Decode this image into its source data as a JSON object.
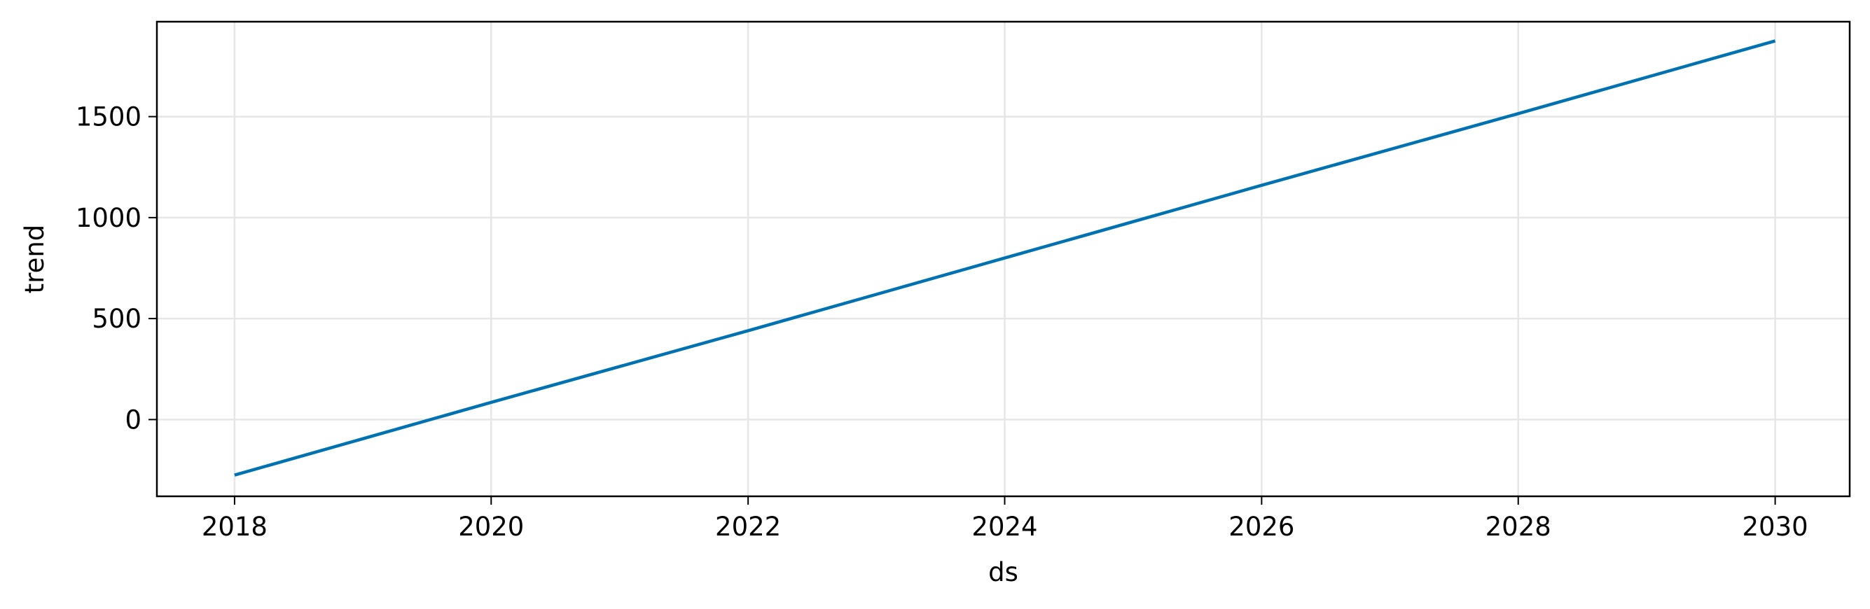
{
  "chart_data": {
    "type": "line",
    "title": "",
    "xlabel": "ds",
    "ylabel": "trend",
    "x_type": "date",
    "xlim": [
      "2017-05-25",
      "2030-08-01"
    ],
    "ylim": [
      -380,
      1970
    ],
    "x_ticks": [
      {
        "value": "2018-01-01",
        "label": "2018"
      },
      {
        "value": "2020-01-01",
        "label": "2020"
      },
      {
        "value": "2022-01-01",
        "label": "2022"
      },
      {
        "value": "2024-01-01",
        "label": "2024"
      },
      {
        "value": "2026-01-01",
        "label": "2026"
      },
      {
        "value": "2028-01-01",
        "label": "2028"
      },
      {
        "value": "2030-01-01",
        "label": "2030"
      }
    ],
    "y_ticks": [
      {
        "value": 0,
        "label": "0"
      },
      {
        "value": 500,
        "label": "500"
      },
      {
        "value": 1000,
        "label": "1000"
      },
      {
        "value": 1500,
        "label": "1500"
      }
    ],
    "grid": true,
    "series": [
      {
        "color": "#0072B2",
        "x": [
          "2018-01-01",
          "2020-01-01",
          "2022-01-01",
          "2024-01-01",
          "2026-01-01",
          "2028-01-01",
          "2030-01-01"
        ],
        "y": [
          -275,
          85,
          440,
          800,
          1160,
          1515,
          1875
        ]
      }
    ],
    "colors": {
      "line": "#0072B2",
      "grid": "#e6e6e6",
      "axes": "#000000"
    }
  }
}
